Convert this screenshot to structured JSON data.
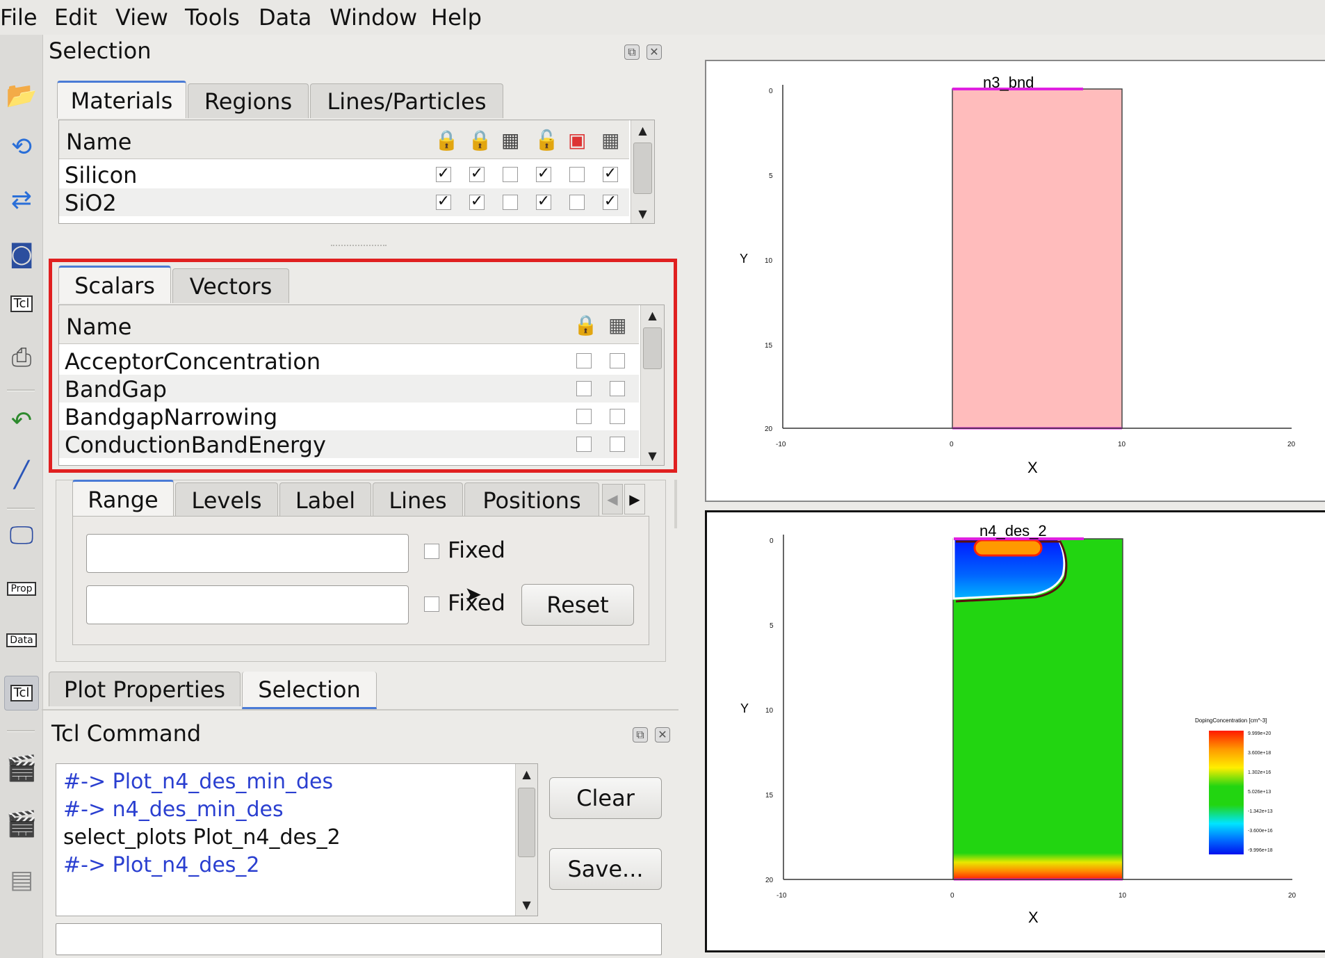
{
  "menu": [
    "File",
    "Edit",
    "View",
    "Tools",
    "Data",
    "Window",
    "Help"
  ],
  "toolbar_icons": [
    "open-folder-icon",
    "reload-icon",
    "swap-icon",
    "camera-icon",
    "tcl-script-icon",
    "printer-icon",
    "undo-icon",
    "pen-icon",
    "monitor-icon",
    "properties-icon",
    "data-icon",
    "tcl-icon",
    "record-icon",
    "clapper-icon",
    "clapper-stack-icon"
  ],
  "toolbar_labels": {
    "tcl1": "Tcl",
    "prop": "Prop",
    "data": "Data",
    "tcl2": "Tcl"
  },
  "selection_panel": {
    "title": "Selection",
    "tabs": [
      "Materials",
      "Regions",
      "Lines/Particles"
    ],
    "materials": {
      "header_name": "Name",
      "rows": [
        {
          "name": "Silicon",
          "checks": [
            true,
            true,
            false,
            true,
            false,
            true
          ]
        },
        {
          "name": "SiO2",
          "checks": [
            true,
            true,
            false,
            true,
            false,
            true
          ]
        }
      ]
    },
    "field_tabs": [
      "Scalars",
      "Vectors"
    ],
    "scalars": {
      "header_name": "Name",
      "rows": [
        {
          "name": "AcceptorConcentration",
          "checks": [
            false,
            false
          ]
        },
        {
          "name": "BandGap",
          "checks": [
            false,
            false
          ]
        },
        {
          "name": "BandgapNarrowing",
          "checks": [
            false,
            false
          ]
        },
        {
          "name": "ConductionBandEnergy",
          "checks": [
            false,
            false
          ]
        }
      ]
    },
    "range_tabs": [
      "Range",
      "Levels",
      "Label",
      "Lines",
      "Positions"
    ],
    "range": {
      "min_value": "",
      "max_value": "",
      "fixed_label_1": "Fixed",
      "fixed_label_2": "Fixed",
      "reset_label": "Reset"
    }
  },
  "bottom_tabs": [
    "Plot Properties",
    "Selection"
  ],
  "tcl_panel": {
    "title": "Tcl Command",
    "lines": [
      {
        "text": "#-> Plot_n4_des_min_des",
        "color": "#2a3fd0"
      },
      {
        "text": "#-> n4_des_min_des",
        "color": "#2a3fd0"
      },
      {
        "text": "select_plots Plot_n4_des_2",
        "color": "#111111"
      },
      {
        "text": "#-> Plot_n4_des_2",
        "color": "#2a3fd0"
      }
    ],
    "clear_label": "Clear",
    "save_label": "Save...",
    "command_value": ""
  },
  "plot1": {
    "title": "n3_bnd",
    "xlabel": "X",
    "ylabel": "Y",
    "x_ticks": [
      "-10",
      "0",
      "10",
      "20"
    ],
    "y_ticks": [
      "0",
      "5",
      "10",
      "15",
      "20"
    ]
  },
  "plot2": {
    "title": "n4_des_2",
    "xlabel": "X",
    "ylabel": "Y",
    "x_ticks": [
      "-10",
      "0",
      "10",
      "20"
    ],
    "y_ticks": [
      "0",
      "5",
      "10",
      "15",
      "20"
    ],
    "legend_title": "DopingConcentration [cm^-3]",
    "legend_values": [
      "9.999e+20",
      "3.600e+18",
      "1.302e+16",
      "5.026e+13",
      "-1.342e+13",
      "-3.600e+16",
      "-9.996e+18"
    ]
  },
  "colors": {
    "accent": "#4a7bd6",
    "highlight": "#e02020",
    "region_fill": "#ffbcbc",
    "oxide": "#e020e0",
    "green": "#22d511"
  }
}
